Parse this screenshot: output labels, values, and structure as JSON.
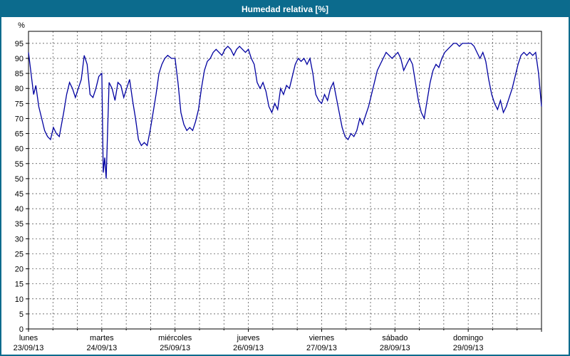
{
  "header": {
    "title": "Humedad relativa [%]"
  },
  "colors": {
    "header_bg": "#0c6b8d",
    "frame_border": "#0c6b8d",
    "title_text": "#ffffff",
    "line": "#0000a0",
    "grid": "#444444",
    "plot_border": "#000000",
    "background": "#ffffff"
  },
  "chart_data": {
    "type": "line",
    "title": "Humedad relativa [%]",
    "xlabel": "",
    "ylabel": "%",
    "ylim": [
      0,
      99
    ],
    "grid": "dashed",
    "legend": "none",
    "minor_x_per_day": 3,
    "y_ticks": [
      0,
      5,
      10,
      15,
      20,
      25,
      30,
      35,
      40,
      45,
      50,
      55,
      60,
      65,
      70,
      75,
      80,
      85,
      90,
      95
    ],
    "x_days": [
      {
        "name": "lunes",
        "date": "23/09/13"
      },
      {
        "name": "martes",
        "date": "24/09/13"
      },
      {
        "name": "miércoles",
        "date": "25/09/13"
      },
      {
        "name": "jueves",
        "date": "26/09/13"
      },
      {
        "name": "viernes",
        "date": "27/09/13"
      },
      {
        "name": "sábado",
        "date": "28/09/13"
      },
      {
        "name": "domingo",
        "date": "29/09/13"
      }
    ],
    "series": [
      {
        "name": "Humedad relativa",
        "points": [
          [
            0.0,
            92
          ],
          [
            0.04,
            84
          ],
          [
            0.07,
            78
          ],
          [
            0.1,
            81
          ],
          [
            0.14,
            74
          ],
          [
            0.18,
            70
          ],
          [
            0.22,
            66
          ],
          [
            0.26,
            64
          ],
          [
            0.3,
            63
          ],
          [
            0.34,
            67
          ],
          [
            0.38,
            65
          ],
          [
            0.42,
            64
          ],
          [
            0.48,
            72
          ],
          [
            0.52,
            78
          ],
          [
            0.56,
            82
          ],
          [
            0.6,
            80
          ],
          [
            0.64,
            77
          ],
          [
            0.68,
            80
          ],
          [
            0.72,
            83
          ],
          [
            0.76,
            91
          ],
          [
            0.8,
            88
          ],
          [
            0.84,
            78
          ],
          [
            0.88,
            77
          ],
          [
            0.92,
            80
          ],
          [
            0.96,
            84
          ],
          [
            1.0,
            85
          ],
          [
            1.02,
            52
          ],
          [
            1.04,
            57
          ],
          [
            1.06,
            50
          ],
          [
            1.1,
            82
          ],
          [
            1.14,
            80
          ],
          [
            1.18,
            76
          ],
          [
            1.22,
            82
          ],
          [
            1.26,
            81
          ],
          [
            1.3,
            77
          ],
          [
            1.34,
            80
          ],
          [
            1.38,
            83
          ],
          [
            1.42,
            76
          ],
          [
            1.46,
            70
          ],
          [
            1.5,
            63
          ],
          [
            1.54,
            61
          ],
          [
            1.58,
            62
          ],
          [
            1.62,
            61
          ],
          [
            1.66,
            66
          ],
          [
            1.7,
            72
          ],
          [
            1.74,
            78
          ],
          [
            1.78,
            85
          ],
          [
            1.82,
            88
          ],
          [
            1.86,
            90
          ],
          [
            1.9,
            91
          ],
          [
            1.95,
            90
          ],
          [
            2.0,
            90
          ],
          [
            2.04,
            82
          ],
          [
            2.08,
            72
          ],
          [
            2.12,
            68
          ],
          [
            2.16,
            66
          ],
          [
            2.2,
            67
          ],
          [
            2.24,
            66
          ],
          [
            2.28,
            69
          ],
          [
            2.32,
            73
          ],
          [
            2.36,
            80
          ],
          [
            2.4,
            86
          ],
          [
            2.44,
            89
          ],
          [
            2.48,
            90
          ],
          [
            2.52,
            92
          ],
          [
            2.56,
            93
          ],
          [
            2.6,
            92
          ],
          [
            2.64,
            91
          ],
          [
            2.68,
            93
          ],
          [
            2.72,
            94
          ],
          [
            2.76,
            93
          ],
          [
            2.8,
            91
          ],
          [
            2.84,
            93
          ],
          [
            2.88,
            94
          ],
          [
            2.92,
            93
          ],
          [
            2.96,
            92
          ],
          [
            3.0,
            93
          ],
          [
            3.04,
            90
          ],
          [
            3.08,
            88
          ],
          [
            3.12,
            82
          ],
          [
            3.16,
            80
          ],
          [
            3.2,
            82
          ],
          [
            3.24,
            79
          ],
          [
            3.28,
            74
          ],
          [
            3.32,
            72
          ],
          [
            3.36,
            75
          ],
          [
            3.4,
            73
          ],
          [
            3.44,
            80
          ],
          [
            3.48,
            78
          ],
          [
            3.52,
            81
          ],
          [
            3.56,
            80
          ],
          [
            3.6,
            84
          ],
          [
            3.64,
            88
          ],
          [
            3.68,
            90
          ],
          [
            3.72,
            89
          ],
          [
            3.76,
            90
          ],
          [
            3.8,
            88
          ],
          [
            3.84,
            90
          ],
          [
            3.88,
            85
          ],
          [
            3.92,
            78
          ],
          [
            3.96,
            76
          ],
          [
            4.0,
            75
          ],
          [
            4.04,
            78
          ],
          [
            4.08,
            76
          ],
          [
            4.12,
            80
          ],
          [
            4.16,
            82
          ],
          [
            4.2,
            77
          ],
          [
            4.24,
            72
          ],
          [
            4.28,
            67
          ],
          [
            4.32,
            64
          ],
          [
            4.36,
            63
          ],
          [
            4.4,
            65
          ],
          [
            4.44,
            64
          ],
          [
            4.48,
            66
          ],
          [
            4.52,
            70
          ],
          [
            4.56,
            68
          ],
          [
            4.6,
            71
          ],
          [
            4.64,
            74
          ],
          [
            4.68,
            78
          ],
          [
            4.72,
            82
          ],
          [
            4.76,
            86
          ],
          [
            4.8,
            88
          ],
          [
            4.84,
            90
          ],
          [
            4.88,
            92
          ],
          [
            4.92,
            91
          ],
          [
            4.96,
            90
          ],
          [
            5.0,
            91
          ],
          [
            5.04,
            92
          ],
          [
            5.08,
            90
          ],
          [
            5.12,
            86
          ],
          [
            5.16,
            88
          ],
          [
            5.2,
            90
          ],
          [
            5.24,
            88
          ],
          [
            5.28,
            82
          ],
          [
            5.32,
            76
          ],
          [
            5.36,
            72
          ],
          [
            5.4,
            70
          ],
          [
            5.44,
            76
          ],
          [
            5.48,
            82
          ],
          [
            5.52,
            86
          ],
          [
            5.56,
            88
          ],
          [
            5.6,
            87
          ],
          [
            5.64,
            90
          ],
          [
            5.68,
            92
          ],
          [
            5.72,
            93
          ],
          [
            5.76,
            94
          ],
          [
            5.8,
            95
          ],
          [
            5.84,
            95
          ],
          [
            5.88,
            94
          ],
          [
            5.92,
            95
          ],
          [
            5.96,
            95
          ],
          [
            6.0,
            95
          ],
          [
            6.04,
            95
          ],
          [
            6.08,
            94
          ],
          [
            6.12,
            92
          ],
          [
            6.16,
            90
          ],
          [
            6.2,
            92
          ],
          [
            6.24,
            89
          ],
          [
            6.28,
            83
          ],
          [
            6.32,
            78
          ],
          [
            6.36,
            75
          ],
          [
            6.4,
            73
          ],
          [
            6.44,
            76
          ],
          [
            6.48,
            72
          ],
          [
            6.52,
            74
          ],
          [
            6.56,
            77
          ],
          [
            6.6,
            80
          ],
          [
            6.64,
            84
          ],
          [
            6.68,
            88
          ],
          [
            6.72,
            91
          ],
          [
            6.76,
            92
          ],
          [
            6.8,
            91
          ],
          [
            6.84,
            92
          ],
          [
            6.88,
            91
          ],
          [
            6.92,
            92
          ],
          [
            6.96,
            85
          ],
          [
            7.0,
            74
          ]
        ]
      }
    ]
  }
}
